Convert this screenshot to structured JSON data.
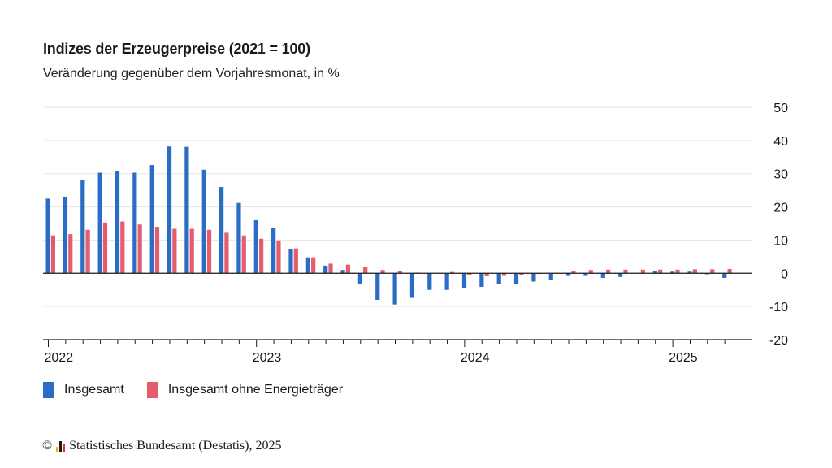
{
  "chart_data": {
    "type": "bar",
    "title": "Indizes der Erzeugerpreise (2021 = 100)",
    "subtitle": "Veränderung gegenüber dem Vorjahresmonat, in %",
    "xlabel": "",
    "ylabel": "",
    "ylim": [
      -20,
      50
    ],
    "yticks": [
      50,
      40,
      30,
      20,
      10,
      0,
      -10,
      -20
    ],
    "x_year_labels": [
      "2022",
      "2023",
      "2024",
      "2025"
    ],
    "categories": [
      "2022-01",
      "2022-02",
      "2022-03",
      "2022-04",
      "2022-05",
      "2022-06",
      "2022-07",
      "2022-08",
      "2022-09",
      "2022-10",
      "2022-11",
      "2022-12",
      "2023-01",
      "2023-02",
      "2023-03",
      "2023-04",
      "2023-05",
      "2023-06",
      "2023-07",
      "2023-08",
      "2023-09",
      "2023-10",
      "2023-11",
      "2023-12",
      "2024-01",
      "2024-02",
      "2024-03",
      "2024-04",
      "2024-05",
      "2024-06",
      "2024-07",
      "2024-08",
      "2024-09",
      "2024-10",
      "2024-11",
      "2024-12",
      "2025-01",
      "2025-02",
      "2025-03",
      "2025-04"
    ],
    "series": [
      {
        "name": "Insgesamt",
        "color": "#2b6cc4",
        "values": [
          22.5,
          23.1,
          28.0,
          30.3,
          30.7,
          30.3,
          32.6,
          38.2,
          38.1,
          31.2,
          26.0,
          21.2,
          16.0,
          13.6,
          7.2,
          4.8,
          2.3,
          1.0,
          -3.1,
          -8.0,
          -9.4,
          -7.4,
          -5.0,
          -5.0,
          -4.4,
          -4.1,
          -3.2,
          -3.2,
          -2.5,
          -2.0,
          -0.8,
          -0.8,
          -1.4,
          -1.1,
          0.1,
          0.8,
          0.5,
          0.5,
          -0.3,
          -1.4
        ]
      },
      {
        "name": "Insgesamt ohne Energieträger",
        "color": "#e35d6f",
        "values": [
          11.4,
          11.8,
          13.1,
          15.3,
          15.6,
          14.7,
          14.0,
          13.4,
          13.4,
          13.1,
          12.2,
          11.4,
          10.4,
          9.9,
          7.5,
          4.8,
          2.9,
          2.6,
          2.0,
          1.0,
          0.8,
          0.2,
          0.1,
          0.4,
          -0.6,
          -0.9,
          -0.8,
          -0.6,
          -0.2,
          -0.1,
          0.7,
          1.0,
          1.1,
          1.1,
          1.1,
          1.1,
          1.1,
          1.2,
          1.2,
          1.3
        ]
      }
    ],
    "grid": true,
    "legend_position": "bottom-left"
  },
  "source": {
    "copyright": "©",
    "text": "Statistisches Bundesamt (Destatis), 2025",
    "logo_colors": [
      "#e8b400",
      "#1a1a1a",
      "#d9381e"
    ]
  }
}
